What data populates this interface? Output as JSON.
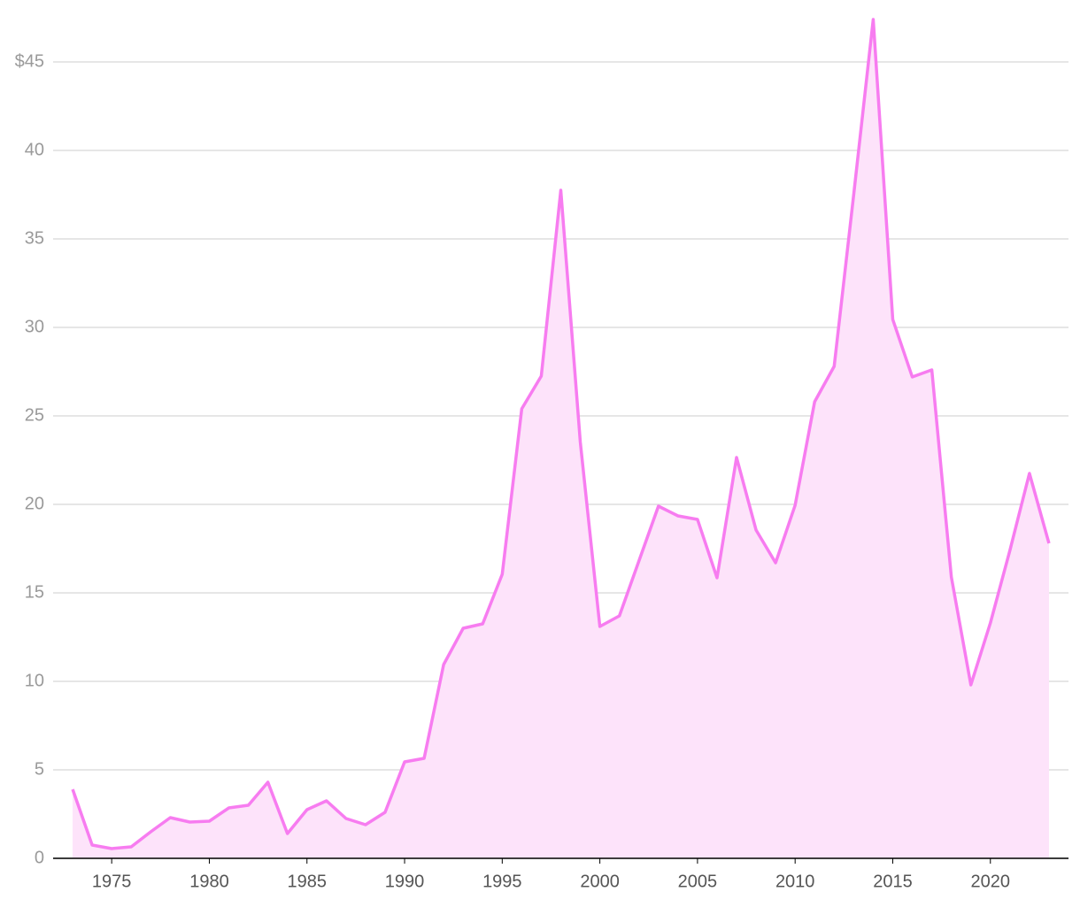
{
  "chart_data": {
    "type": "area",
    "x": [
      1973,
      1974,
      1975,
      1976,
      1977,
      1978,
      1979,
      1980,
      1981,
      1982,
      1983,
      1984,
      1985,
      1986,
      1987,
      1988,
      1989,
      1990,
      1991,
      1992,
      1993,
      1994,
      1995,
      1996,
      1997,
      1998,
      1999,
      2000,
      2001,
      2002,
      2003,
      2004,
      2005,
      2006,
      2007,
      2008,
      2009,
      2010,
      2011,
      2012,
      2013,
      2014,
      2015,
      2016,
      2017,
      2018,
      2019,
      2020,
      2021,
      2022,
      2023
    ],
    "values": [
      3.9,
      0.75,
      0.55,
      0.65,
      1.5,
      2.3,
      2.05,
      2.1,
      2.85,
      3.0,
      4.3,
      1.4,
      2.75,
      3.25,
      2.25,
      1.9,
      2.6,
      5.45,
      5.65,
      10.95,
      13.0,
      13.25,
      16.05,
      25.4,
      27.25,
      37.75,
      23.5,
      13.1,
      13.7,
      16.8,
      19.9,
      19.35,
      19.15,
      15.85,
      22.65,
      18.55,
      16.7,
      19.95,
      25.8,
      27.8,
      37.5,
      47.4,
      30.45,
      27.2,
      27.6,
      15.9,
      9.8,
      13.3,
      17.4,
      21.75,
      17.8
    ],
    "color": "#f77cf0",
    "fill_color": "#fde3fa",
    "xlim": [
      1972,
      2024
    ],
    "xticks": [
      1975,
      1980,
      1985,
      1990,
      1995,
      2000,
      2005,
      2010,
      2015,
      2020
    ],
    "ylim": [
      0,
      47.5
    ],
    "yticks": [
      0,
      5,
      10,
      15,
      20,
      25,
      30,
      35,
      40,
      {
        "value": 45,
        "label": "$45"
      }
    ],
    "grid": true
  }
}
